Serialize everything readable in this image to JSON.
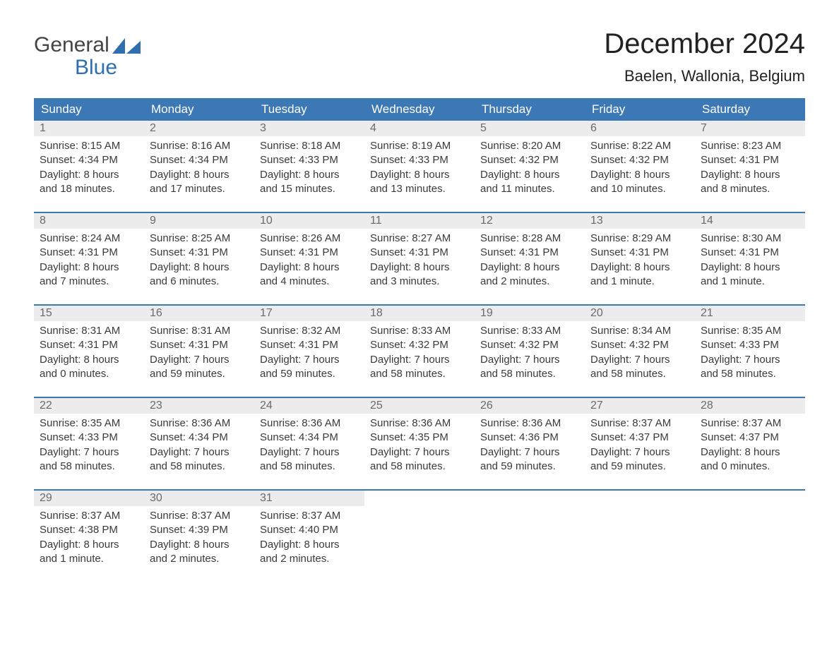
{
  "brand": {
    "line1": "General",
    "line2": "Blue",
    "accent": "#2f6fb0"
  },
  "title": "December 2024",
  "location": "Baelen, Wallonia, Belgium",
  "colors": {
    "header_bg": "#3b78b5",
    "header_text": "#ffffff",
    "daynum_bg": "#ececec",
    "daynum_text": "#6a6a6a",
    "row_border": "#3b78b5",
    "page_bg": "#ffffff",
    "body_text": "#3a3a3a"
  },
  "weekdays": [
    "Sunday",
    "Monday",
    "Tuesday",
    "Wednesday",
    "Thursday",
    "Friday",
    "Saturday"
  ],
  "weeks": [
    [
      {
        "n": "1",
        "sunrise": "8:15 AM",
        "sunset": "4:34 PM",
        "daylight": "8 hours and 18 minutes."
      },
      {
        "n": "2",
        "sunrise": "8:16 AM",
        "sunset": "4:34 PM",
        "daylight": "8 hours and 17 minutes."
      },
      {
        "n": "3",
        "sunrise": "8:18 AM",
        "sunset": "4:33 PM",
        "daylight": "8 hours and 15 minutes."
      },
      {
        "n": "4",
        "sunrise": "8:19 AM",
        "sunset": "4:33 PM",
        "daylight": "8 hours and 13 minutes."
      },
      {
        "n": "5",
        "sunrise": "8:20 AM",
        "sunset": "4:32 PM",
        "daylight": "8 hours and 11 minutes."
      },
      {
        "n": "6",
        "sunrise": "8:22 AM",
        "sunset": "4:32 PM",
        "daylight": "8 hours and 10 minutes."
      },
      {
        "n": "7",
        "sunrise": "8:23 AM",
        "sunset": "4:31 PM",
        "daylight": "8 hours and 8 minutes."
      }
    ],
    [
      {
        "n": "8",
        "sunrise": "8:24 AM",
        "sunset": "4:31 PM",
        "daylight": "8 hours and 7 minutes."
      },
      {
        "n": "9",
        "sunrise": "8:25 AM",
        "sunset": "4:31 PM",
        "daylight": "8 hours and 6 minutes."
      },
      {
        "n": "10",
        "sunrise": "8:26 AM",
        "sunset": "4:31 PM",
        "daylight": "8 hours and 4 minutes."
      },
      {
        "n": "11",
        "sunrise": "8:27 AM",
        "sunset": "4:31 PM",
        "daylight": "8 hours and 3 minutes."
      },
      {
        "n": "12",
        "sunrise": "8:28 AM",
        "sunset": "4:31 PM",
        "daylight": "8 hours and 2 minutes."
      },
      {
        "n": "13",
        "sunrise": "8:29 AM",
        "sunset": "4:31 PM",
        "daylight": "8 hours and 1 minute."
      },
      {
        "n": "14",
        "sunrise": "8:30 AM",
        "sunset": "4:31 PM",
        "daylight": "8 hours and 1 minute."
      }
    ],
    [
      {
        "n": "15",
        "sunrise": "8:31 AM",
        "sunset": "4:31 PM",
        "daylight": "8 hours and 0 minutes."
      },
      {
        "n": "16",
        "sunrise": "8:31 AM",
        "sunset": "4:31 PM",
        "daylight": "7 hours and 59 minutes."
      },
      {
        "n": "17",
        "sunrise": "8:32 AM",
        "sunset": "4:31 PM",
        "daylight": "7 hours and 59 minutes."
      },
      {
        "n": "18",
        "sunrise": "8:33 AM",
        "sunset": "4:32 PM",
        "daylight": "7 hours and 58 minutes."
      },
      {
        "n": "19",
        "sunrise": "8:33 AM",
        "sunset": "4:32 PM",
        "daylight": "7 hours and 58 minutes."
      },
      {
        "n": "20",
        "sunrise": "8:34 AM",
        "sunset": "4:32 PM",
        "daylight": "7 hours and 58 minutes."
      },
      {
        "n": "21",
        "sunrise": "8:35 AM",
        "sunset": "4:33 PM",
        "daylight": "7 hours and 58 minutes."
      }
    ],
    [
      {
        "n": "22",
        "sunrise": "8:35 AM",
        "sunset": "4:33 PM",
        "daylight": "7 hours and 58 minutes."
      },
      {
        "n": "23",
        "sunrise": "8:36 AM",
        "sunset": "4:34 PM",
        "daylight": "7 hours and 58 minutes."
      },
      {
        "n": "24",
        "sunrise": "8:36 AM",
        "sunset": "4:34 PM",
        "daylight": "7 hours and 58 minutes."
      },
      {
        "n": "25",
        "sunrise": "8:36 AM",
        "sunset": "4:35 PM",
        "daylight": "7 hours and 58 minutes."
      },
      {
        "n": "26",
        "sunrise": "8:36 AM",
        "sunset": "4:36 PM",
        "daylight": "7 hours and 59 minutes."
      },
      {
        "n": "27",
        "sunrise": "8:37 AM",
        "sunset": "4:37 PM",
        "daylight": "7 hours and 59 minutes."
      },
      {
        "n": "28",
        "sunrise": "8:37 AM",
        "sunset": "4:37 PM",
        "daylight": "8 hours and 0 minutes."
      }
    ],
    [
      {
        "n": "29",
        "sunrise": "8:37 AM",
        "sunset": "4:38 PM",
        "daylight": "8 hours and 1 minute."
      },
      {
        "n": "30",
        "sunrise": "8:37 AM",
        "sunset": "4:39 PM",
        "daylight": "8 hours and 2 minutes."
      },
      {
        "n": "31",
        "sunrise": "8:37 AM",
        "sunset": "4:40 PM",
        "daylight": "8 hours and 2 minutes."
      },
      null,
      null,
      null,
      null
    ]
  ],
  "labels": {
    "sunrise": "Sunrise:",
    "sunset": "Sunset:",
    "daylight": "Daylight:"
  }
}
